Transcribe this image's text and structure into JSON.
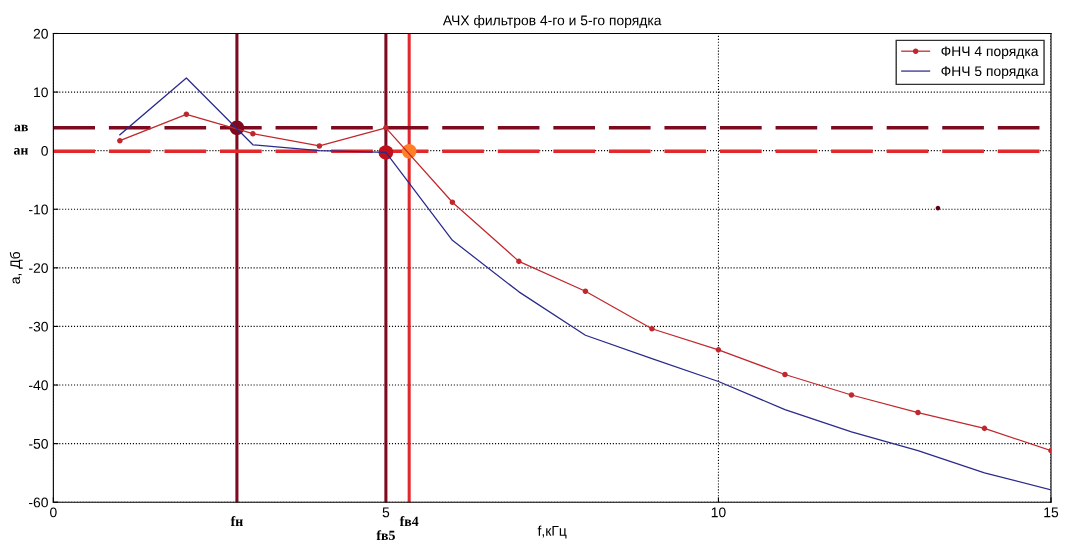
{
  "chart_data": {
    "type": "line",
    "title": "АЧХ фильтров 4-го и 5-го порядка",
    "xlabel": "f,кГц",
    "ylabel": "a, Дб",
    "xlim": [
      0,
      15
    ],
    "xticks": [
      0,
      5,
      10,
      15
    ],
    "ylim": [
      -60,
      20
    ],
    "yticks": [
      -60,
      -50,
      -40,
      -30,
      -20,
      -10,
      0,
      10,
      20
    ],
    "grid": true,
    "legend": "top right",
    "series": [
      {
        "name": "ФНЧ 4 порядка",
        "color": "#c0282d",
        "marker": "circle",
        "x": [
          1,
          2,
          3,
          4,
          5,
          6,
          7,
          8,
          9,
          10,
          11,
          12,
          13,
          14,
          15
        ],
        "values": [
          1.7,
          6.2,
          2.9,
          0.8,
          3.9,
          -8.8,
          -18.9,
          -24.0,
          -30.4,
          -34.0,
          -38.2,
          -41.7,
          -44.7,
          -47.4,
          -51.2
        ]
      },
      {
        "name": "ФНЧ 5 порядка",
        "color": "#2a2a8c",
        "marker": "none",
        "x": [
          1,
          2,
          3,
          4,
          5,
          6,
          7,
          8,
          9,
          10,
          11,
          12,
          13,
          14,
          15
        ],
        "values": [
          2.7,
          12.4,
          1.0,
          0.0,
          -0.3,
          -15.3,
          -24.1,
          -31.5,
          -35.5,
          -39.4,
          -44.2,
          -48.0,
          -51.2,
          -55.0,
          -57.9
        ]
      },
      {
        "type": "scatter",
        "x": [
          2.76,
          5.0,
          5.35,
          13.3
        ],
        "values": [
          3.9,
          -0.3,
          -0.1,
          -9.8
        ],
        "colors": [
          "#7d0a1e",
          "#c0101a",
          "#ff7f27",
          "#600010"
        ],
        "sizes": [
          1,
          1,
          1,
          0.1
        ]
      }
    ],
    "ref_lines": [
      {
        "axis": "x",
        "value": 2.76,
        "label": "fн",
        "color": "#7d0a1e",
        "line_style": "solid"
      },
      {
        "axis": "x",
        "value": 5.0,
        "label": "fв5",
        "color": "#7d0a1e",
        "line_style": "solid"
      },
      {
        "axis": "x",
        "value": 5.35,
        "label": "fв4",
        "color": "#e0282d",
        "line_style": "solid"
      },
      {
        "axis": "y",
        "value": 3.9,
        "label": "aв",
        "color": "#7d0a1e",
        "line_style": "dashed"
      },
      {
        "axis": "y",
        "value": -0.1,
        "label": "aн",
        "color": "#e0282d",
        "line_style": "dashed"
      }
    ]
  }
}
